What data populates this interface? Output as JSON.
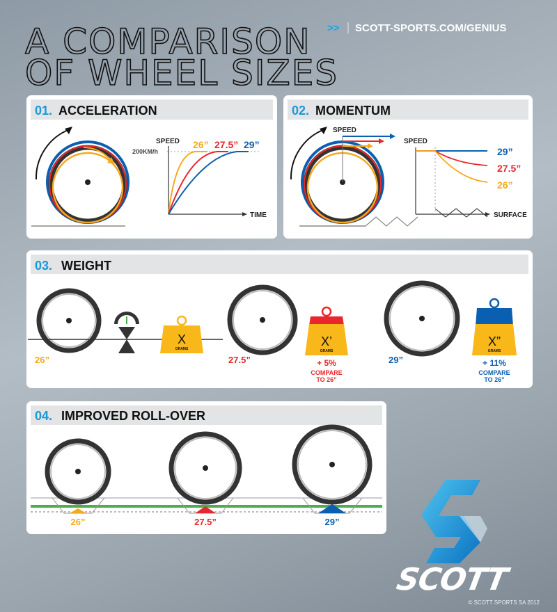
{
  "title": {
    "line1": "A COMPARISON",
    "line2": "OF WHEEL SIZES"
  },
  "url": {
    "arrows": ">>",
    "text": "SCOTT-SPORTS.COM/GENIUS"
  },
  "colors": {
    "blue": "#0b5fb0",
    "red": "#e8262b",
    "orange": "#f7a81b",
    "accent": "#1a9ad6",
    "green": "#4cae4c"
  },
  "sections": [
    {
      "num": "01.",
      "title": "ACCELERATION",
      "y_label": "SPEED",
      "x_label": "TIME",
      "ref_label": "200KM/h",
      "series": [
        "26”",
        "27.5”",
        "29”"
      ]
    },
    {
      "num": "02.",
      "title": "MOMENTUM",
      "arrow_label": "SPEED",
      "y_label": "SPEED",
      "x_label": "SURFACE",
      "series": [
        "29”",
        "27.5”",
        "26”"
      ]
    },
    {
      "num": "03.",
      "title": "WEIGHT",
      "wheels": [
        {
          "size": "26”",
          "weight": "X",
          "unit": "GRAMS"
        },
        {
          "size": "27.5”",
          "weight": "X’",
          "unit": "GRAMS",
          "delta": "+ 5%",
          "note1": "COMPARE",
          "note2": "TO 26”"
        },
        {
          "size": "29”",
          "weight": "X”",
          "unit": "GRAMS",
          "delta": "+ 11%",
          "note1": "COMPARE",
          "note2": "TO 26”"
        }
      ]
    },
    {
      "num": "04.",
      "title": "IMPROVED ROLL-OVER",
      "wheels": [
        "26”",
        "27.5”",
        "29”"
      ]
    }
  ],
  "logo": {
    "brand": "SCOTT"
  },
  "copyright": "© SCOTT SPORTS SA 2012"
}
